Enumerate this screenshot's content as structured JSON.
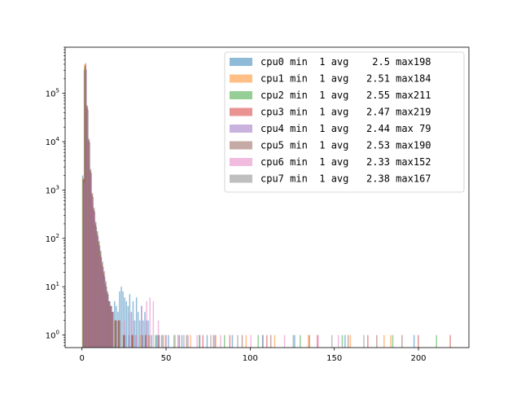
{
  "chart_data": {
    "type": "bar",
    "title": "",
    "xlabel": "",
    "ylabel": "",
    "xlim": [
      -10,
      230
    ],
    "ylim": [
      0.55,
      900000
    ],
    "yscale": "log",
    "grid": false,
    "legend_position": "upper right",
    "x_ticks": [
      0,
      50,
      100,
      150,
      200
    ],
    "y_ticks": [
      {
        "value": 1,
        "label": "10^0",
        "base": "10",
        "exp": "0"
      },
      {
        "value": 10,
        "label": "10^1",
        "base": "10",
        "exp": "1"
      },
      {
        "value": 100,
        "label": "10^2",
        "base": "10",
        "exp": "2"
      },
      {
        "value": 1000,
        "label": "10^3",
        "base": "10",
        "exp": "3"
      },
      {
        "value": 10000,
        "label": "10^4",
        "base": "10",
        "exp": "4"
      },
      {
        "value": 100000,
        "label": "10^5",
        "base": "10",
        "exp": "5"
      }
    ],
    "series": [
      {
        "name": "cpu0",
        "legend": "cpu0 min  1 avg    2.5 max198",
        "color": "#1f77b4",
        "x": [
          1,
          2,
          3,
          4,
          5,
          6,
          7,
          8,
          9,
          10,
          11,
          12,
          13,
          14,
          15,
          16,
          17,
          18,
          19,
          20,
          21,
          22,
          23,
          24,
          25,
          26,
          27,
          28,
          29,
          30,
          31,
          32,
          33,
          34,
          35,
          36,
          37,
          38,
          39,
          40,
          42,
          45,
          48,
          52,
          60,
          75,
          90,
          108,
          127,
          157,
          198
        ],
        "values": [
          2000,
          300000,
          60000,
          12000,
          3000,
          900,
          500,
          250,
          160,
          100,
          60,
          40,
          25,
          15,
          10,
          7,
          5,
          4,
          3,
          5,
          4,
          3,
          8,
          10,
          8,
          6,
          5,
          4,
          7,
          3,
          5,
          2,
          6,
          3,
          2,
          4,
          2,
          3,
          2,
          2,
          1,
          1,
          1,
          1,
          1,
          1,
          1,
          1,
          1,
          1,
          1
        ]
      },
      {
        "name": "cpu1",
        "legend": "cpu1 min  1 avg   2.51 max184",
        "color": "#ff7f0e",
        "x": [
          1,
          2,
          3,
          4,
          5,
          6,
          7,
          8,
          9,
          10,
          11,
          12,
          13,
          14,
          15,
          16,
          17,
          18,
          20,
          22,
          25,
          30,
          35,
          40,
          50,
          65,
          80,
          98,
          115,
          135,
          160,
          180,
          184
        ],
        "values": [
          1800,
          400000,
          55000,
          10000,
          2500,
          800,
          400,
          200,
          130,
          80,
          50,
          30,
          20,
          12,
          8,
          5,
          4,
          3,
          2,
          2,
          1,
          1,
          1,
          1,
          1,
          1,
          1,
          1,
          1,
          1,
          1,
          1,
          1
        ]
      },
      {
        "name": "cpu2",
        "legend": "cpu2 min  1 avg   2.55 max211",
        "color": "#2ca02c",
        "x": [
          1,
          2,
          3,
          4,
          5,
          6,
          7,
          8,
          9,
          10,
          11,
          12,
          13,
          14,
          15,
          16,
          17,
          18,
          20,
          22,
          25,
          30,
          36,
          44,
          55,
          70,
          85,
          105,
          130,
          155,
          185,
          211
        ],
        "values": [
          1700,
          350000,
          50000,
          11000,
          2600,
          850,
          420,
          210,
          140,
          85,
          55,
          32,
          20,
          12,
          8,
          5,
          4,
          3,
          2,
          2,
          1,
          1,
          1,
          1,
          1,
          1,
          1,
          1,
          1,
          1,
          1,
          1
        ]
      },
      {
        "name": "cpu3",
        "legend": "cpu3 min  1 avg   2.47 max219",
        "color": "#d62728",
        "x": [
          1,
          2,
          3,
          4,
          5,
          6,
          7,
          8,
          9,
          10,
          11,
          12,
          13,
          14,
          15,
          16,
          17,
          18,
          20,
          22,
          25,
          30,
          38,
          46,
          58,
          72,
          88,
          110,
          140,
          170,
          200,
          219
        ],
        "values": [
          1600,
          380000,
          52000,
          10500,
          2400,
          780,
          380,
          190,
          120,
          75,
          45,
          28,
          18,
          11,
          7,
          5,
          4,
          3,
          2,
          2,
          1,
          1,
          1,
          1,
          1,
          1,
          1,
          1,
          1,
          1,
          1,
          1
        ]
      },
      {
        "name": "cpu4",
        "legend": "cpu4 min  1 avg   2.44 max 79",
        "color": "#9467bd",
        "x": [
          1,
          2,
          3,
          4,
          5,
          6,
          7,
          8,
          9,
          10,
          11,
          12,
          13,
          14,
          15,
          16,
          17,
          18,
          20,
          22,
          25,
          28,
          32,
          36,
          40,
          45,
          50,
          57,
          63,
          70,
          79
        ],
        "values": [
          1500,
          320000,
          48000,
          10000,
          2300,
          750,
          370,
          180,
          115,
          70,
          42,
          26,
          17,
          10,
          7,
          5,
          4,
          3,
          2,
          2,
          1,
          1,
          1,
          1,
          1,
          1,
          1,
          1,
          1,
          1,
          1
        ]
      },
      {
        "name": "cpu5",
        "legend": "cpu5 min  1 avg   2.53 max190",
        "color": "#8c564b",
        "x": [
          1,
          2,
          3,
          4,
          5,
          6,
          7,
          8,
          9,
          10,
          11,
          12,
          13,
          14,
          15,
          16,
          17,
          18,
          20,
          22,
          25,
          30,
          38,
          48,
          62,
          78,
          95,
          112,
          135,
          158,
          175,
          190
        ],
        "values": [
          1700,
          420000,
          56000,
          11500,
          2700,
          860,
          430,
          220,
          140,
          88,
          55,
          33,
          21,
          13,
          8,
          5,
          4,
          3,
          2,
          2,
          1,
          1,
          1,
          1,
          1,
          1,
          1,
          1,
          1,
          1,
          1,
          1
        ]
      },
      {
        "name": "cpu6",
        "legend": "cpu6 min  1 avg   2.33 max152",
        "color": "#e377c2",
        "x": [
          1,
          2,
          3,
          4,
          5,
          6,
          7,
          8,
          9,
          10,
          11,
          12,
          13,
          14,
          15,
          16,
          17,
          18,
          20,
          22,
          25,
          28,
          30,
          32,
          35,
          38,
          40,
          42,
          45,
          55,
          68,
          82,
          100,
          120,
          140,
          152
        ],
        "values": [
          1400,
          300000,
          45000,
          9500,
          2200,
          700,
          350,
          170,
          110,
          68,
          40,
          25,
          16,
          10,
          7,
          5,
          4,
          3,
          2,
          2,
          2,
          3,
          2,
          1,
          4,
          5,
          6,
          5,
          2,
          1,
          1,
          1,
          1,
          1,
          1,
          1
        ]
      },
      {
        "name": "cpu7",
        "legend": "cpu7 min  1 avg   2.38 max167",
        "color": "#7f7f7f",
        "x": [
          1,
          2,
          3,
          4,
          5,
          6,
          7,
          8,
          9,
          10,
          11,
          12,
          13,
          14,
          15,
          16,
          17,
          18,
          20,
          22,
          25,
          30,
          37,
          45,
          60,
          76,
          92,
          107,
          125,
          148,
          167
        ],
        "values": [
          1450,
          310000,
          46000,
          9800,
          2250,
          720,
          360,
          175,
          112,
          70,
          41,
          26,
          16,
          10,
          7,
          5,
          4,
          3,
          2,
          2,
          1,
          1,
          1,
          1,
          1,
          1,
          1,
          1,
          1,
          1,
          1
        ]
      }
    ]
  }
}
